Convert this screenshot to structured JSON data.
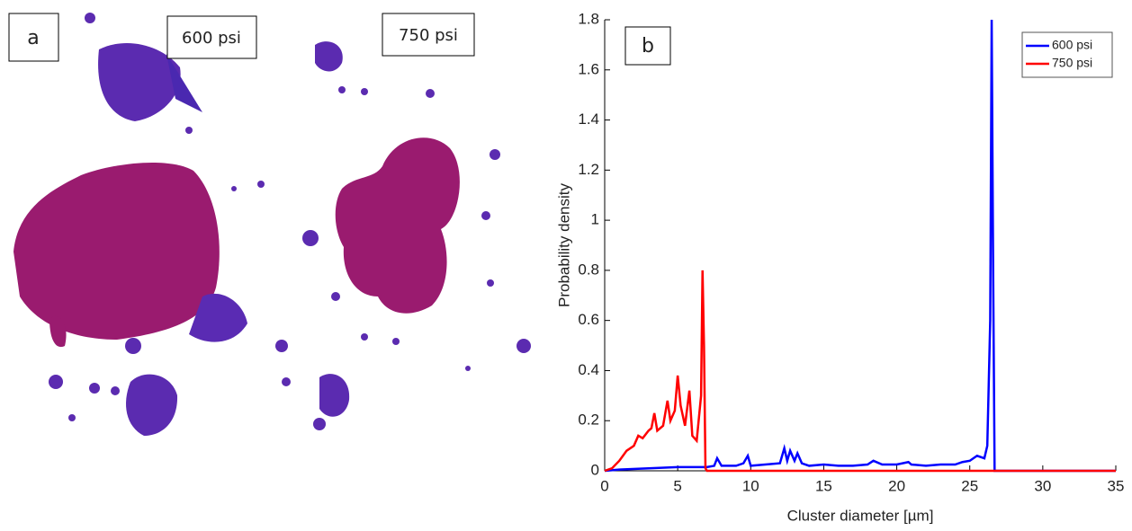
{
  "panel_a": {
    "label": "a",
    "left_label": "600 psi",
    "right_label": "750 psi"
  },
  "chart_data": {
    "type": "line",
    "panel_label": "b",
    "xlabel": "Cluster diameter [µm]",
    "ylabel": "Probability density",
    "xlim": [
      0,
      35
    ],
    "ylim": [
      0,
      1.8
    ],
    "xticks": [
      0,
      5,
      10,
      15,
      20,
      25,
      30,
      35
    ],
    "yticks": [
      0,
      0.2,
      0.4,
      0.6,
      0.8,
      1,
      1.2,
      1.4,
      1.6,
      1.8
    ],
    "legend": "top-right",
    "series": [
      {
        "name": "600 psi",
        "color": "#0000ff",
        "x": [
          0,
          1,
          3,
          5,
          7,
          7.5,
          7.7,
          8,
          9,
          9.5,
          9.8,
          10,
          11,
          12,
          12.3,
          12.5,
          12.7,
          13,
          13.2,
          13.5,
          14,
          15,
          16,
          17,
          18,
          18.4,
          19,
          20,
          20.8,
          21,
          22,
          23,
          24,
          24.5,
          25,
          25.5,
          26,
          26.2,
          26.4,
          26.5,
          26.6,
          26.7,
          27,
          35
        ],
        "values": [
          0,
          0.005,
          0.01,
          0.015,
          0.015,
          0.02,
          0.05,
          0.02,
          0.02,
          0.03,
          0.06,
          0.02,
          0.025,
          0.03,
          0.09,
          0.04,
          0.08,
          0.04,
          0.07,
          0.03,
          0.02,
          0.025,
          0.02,
          0.02,
          0.025,
          0.04,
          0.025,
          0.025,
          0.035,
          0.025,
          0.02,
          0.025,
          0.025,
          0.035,
          0.04,
          0.06,
          0.05,
          0.1,
          0.6,
          1.8,
          0.8,
          0,
          0,
          0
        ]
      },
      {
        "name": "750 psi",
        "color": "#ff0000",
        "x": [
          0,
          0.5,
          1,
          1.5,
          2,
          2.3,
          2.6,
          3,
          3.2,
          3.4,
          3.6,
          4,
          4.3,
          4.5,
          4.8,
          5,
          5.2,
          5.5,
          5.8,
          6,
          6.3,
          6.6,
          6.7,
          6.8,
          6.9,
          7,
          35
        ],
        "values": [
          0,
          0.01,
          0.04,
          0.08,
          0.1,
          0.14,
          0.13,
          0.16,
          0.17,
          0.23,
          0.16,
          0.18,
          0.28,
          0.2,
          0.24,
          0.38,
          0.26,
          0.18,
          0.32,
          0.14,
          0.12,
          0.3,
          0.8,
          0.5,
          0.01,
          0,
          0
        ]
      }
    ]
  }
}
